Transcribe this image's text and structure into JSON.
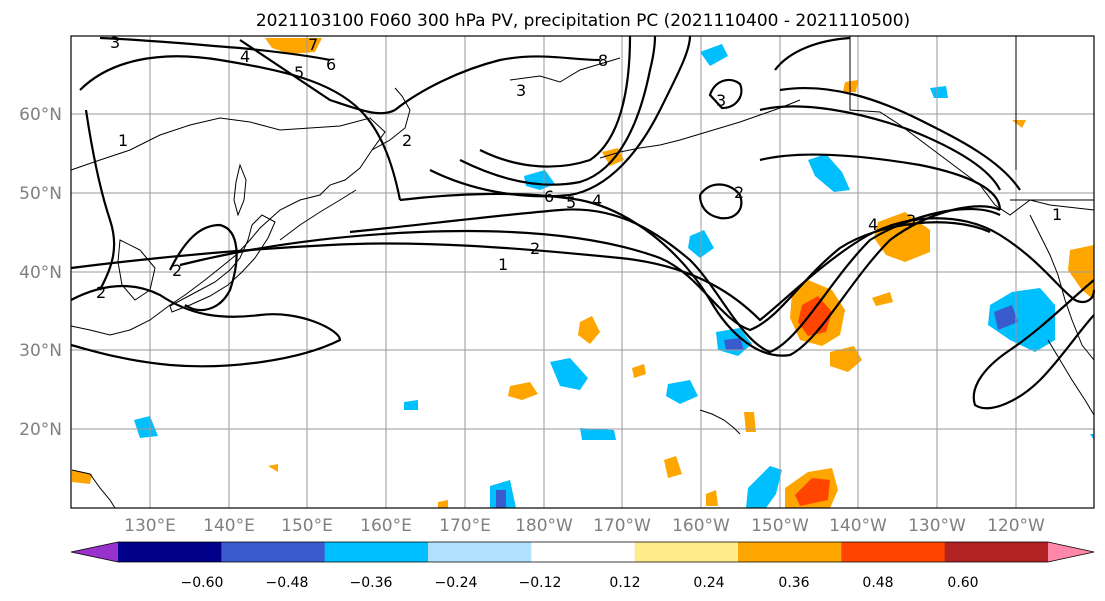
{
  "title": "2021103100 F060 300 hPa PV, precipitation PC (2021110400 - 2021110500)",
  "lat_labels": [
    "60°N",
    "50°N",
    "40°N",
    "30°N",
    "20°N"
  ],
  "lon_labels": [
    "130°E",
    "140°E",
    "150°E",
    "160°E",
    "170°E",
    "180°W",
    "170°W",
    "160°W",
    "150°W",
    "140°W",
    "130°W",
    "120°W"
  ],
  "colorbar": {
    "ticks": [
      "−0.60",
      "−0.48",
      "−0.36",
      "−0.24",
      "−0.12",
      "0.12",
      "0.24",
      "0.36",
      "0.48",
      "0.60"
    ],
    "colors": [
      "#9932cc",
      "#00008b",
      "#3a5bcd",
      "#00bfff",
      "#b0e2ff",
      "#ffffff",
      "#ffec8b",
      "#ffa500",
      "#ff4500",
      "#b22222",
      "#ff88aa"
    ]
  },
  "contour_labels": [
    "3",
    "4",
    "5",
    "6",
    "7",
    "8",
    "1",
    "2",
    "3",
    "6",
    "5",
    "4",
    "2",
    "1",
    "2",
    "2",
    "3",
    "2",
    "4",
    "3",
    "1"
  ],
  "map": {
    "projection": "PlateCarree",
    "lon_range_deg_east": [
      120,
      250
    ],
    "lat_range": [
      10,
      70
    ],
    "field": "300 hPa potential vorticity (PVU)",
    "shading": "precipitation PC"
  }
}
